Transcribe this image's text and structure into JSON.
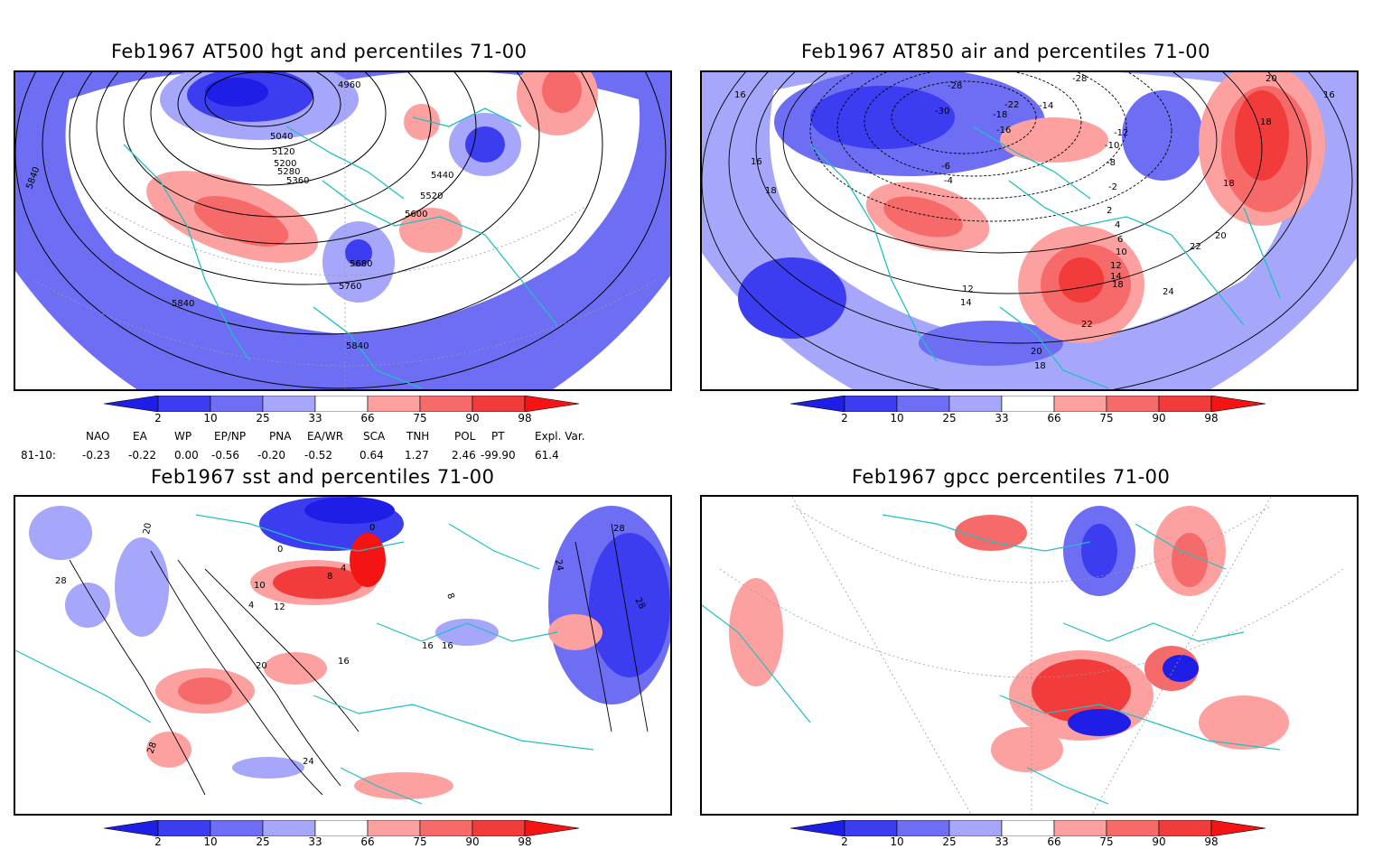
{
  "panels": [
    {
      "title": "Feb1967 AT500 hgt and percentiles 71-00",
      "contour_labels": [
        "4960",
        "5040",
        "5120",
        "5200",
        "5280",
        "5360",
        "5440",
        "5520",
        "5600",
        "5680",
        "5760",
        "5840",
        "5840",
        "5840"
      ]
    },
    {
      "title": "Feb1967 AT850 air and percentiles 71-00",
      "contour_labels": [
        "-28",
        "-30",
        "-28",
        "-22",
        "-18",
        "-16",
        "-14",
        "-12",
        "-10",
        "-8",
        "-6",
        "-4",
        "-2",
        "2",
        "4",
        "6",
        "10",
        "12",
        "14",
        "16",
        "16",
        "16",
        "18",
        "18",
        "18",
        "18",
        "20",
        "20",
        "22",
        "22",
        "24",
        "18",
        "20",
        "12",
        "14"
      ]
    },
    {
      "title": "Feb1967 sst and percentiles 71-00",
      "contour_labels": [
        "20",
        "28",
        "0",
        "0",
        "4",
        "8",
        "10",
        "12",
        "16",
        "16",
        "20",
        "24",
        "28",
        "28",
        "24",
        "28",
        "4",
        "8",
        "16"
      ]
    },
    {
      "title": "Feb1967 gpcc percentiles 71-00",
      "contour_labels": []
    }
  ],
  "colorbar": {
    "labels": [
      "2",
      "10",
      "25",
      "33",
      "66",
      "75",
      "90",
      "98"
    ],
    "colors": {
      "blue_dark": "#1e1ee6",
      "blue_mid": "#3c3cf0",
      "blue_light": "#6e6ef5",
      "blue_pale": "#a6a6fa",
      "red_pale": "#fca0a0",
      "red_light": "#f76a6a",
      "red_mid": "#f23c3c",
      "red_dark": "#f51414"
    }
  },
  "indices": {
    "headers": [
      "NAO",
      "EA",
      "WP",
      "EP/NP",
      "PNA",
      "EA/WR",
      "SCA",
      "TNH",
      "POL",
      "PT",
      "Expl. Var."
    ],
    "row_label": "81-10:",
    "values": [
      "-0.23",
      "-0.22",
      "0.00",
      "-0.56",
      "-0.20",
      "-0.52",
      "0.64",
      "1.27",
      "2.46",
      "-99.90",
      "61.4"
    ]
  },
  "map_colors": {
    "coast": "#20c0c0",
    "contour": "#000000"
  }
}
